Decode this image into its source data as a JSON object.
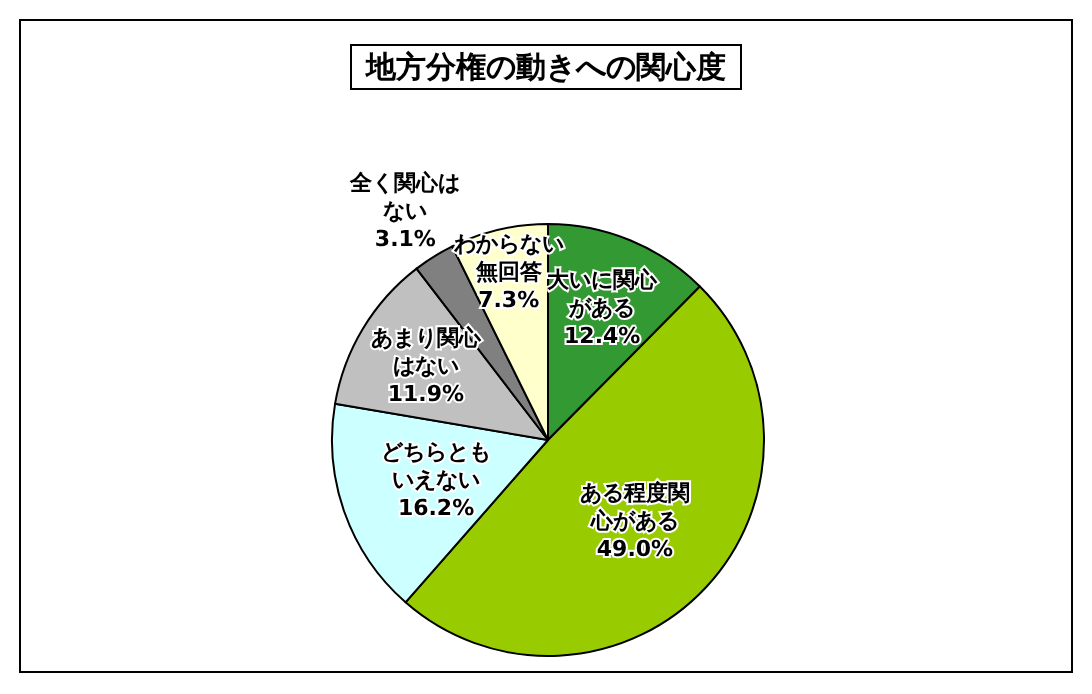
{
  "chart_data": {
    "type": "pie",
    "title": "地方分権の動きへの関心度",
    "categories": [
      "大いに関心がある",
      "ある程度関心がある",
      "どちらともいえない",
      "あまり関心はない",
      "全く関心はない",
      "わからない無回答"
    ],
    "values": [
      12.4,
      49.0,
      16.2,
      11.9,
      3.1,
      7.3
    ],
    "value_labels": [
      "12.4%",
      "49.0%",
      "16.2%",
      "11.9%",
      "3.1%",
      "7.3%"
    ],
    "colors": [
      "#339933",
      "#99cc00",
      "#ccffff",
      "#c0c0c0",
      "#808080",
      "#ffffcc"
    ],
    "legend": false
  }
}
